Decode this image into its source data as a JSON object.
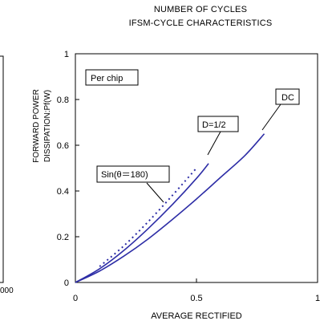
{
  "header": {
    "title_line1": "NUMBER OF CYCLES",
    "title_line2": "IFSM-CYCLE CHARACTERISTICS"
  },
  "left_chart_partial": {
    "ylabel_line1": "FORWARD POWER",
    "ylabel_line2": "DISSIPATION:Pf(W)",
    "tick_fragment": "000"
  },
  "chart_data": {
    "type": "line",
    "xlabel": "AVERAGE RECTIFIED",
    "ylabel": "",
    "xlim": [
      0,
      1
    ],
    "ylim": [
      0,
      1
    ],
    "x_ticks": [
      "0",
      "0.5",
      "1"
    ],
    "y_ticks": [
      "0",
      "0.2",
      "0.4",
      "0.6",
      "0.8",
      "1"
    ],
    "grid": false,
    "annotations": [
      "Per chip",
      "DC",
      "D=1/2",
      "Sin(θ＝180)"
    ],
    "series": [
      {
        "name": "DC",
        "style": "solid",
        "x": [
          0,
          0.1,
          0.2,
          0.3,
          0.4,
          0.5,
          0.6,
          0.7,
          0.78
        ],
        "y": [
          0,
          0.05,
          0.115,
          0.19,
          0.275,
          0.365,
          0.46,
          0.555,
          0.65
        ]
      },
      {
        "name": "D=1/2",
        "style": "solid",
        "x": [
          0,
          0.1,
          0.2,
          0.3,
          0.4,
          0.5,
          0.55
        ],
        "y": [
          0,
          0.06,
          0.14,
          0.235,
          0.34,
          0.455,
          0.52
        ]
      },
      {
        "name": "Sin(θ＝180)",
        "style": "dotted",
        "x": [
          0.1,
          0.2,
          0.3,
          0.4,
          0.5
        ],
        "y": [
          0.07,
          0.16,
          0.265,
          0.38,
          0.5
        ]
      }
    ]
  },
  "colors": {
    "curve": "#2d2da6",
    "axis": "#000000",
    "frame": "#000000"
  }
}
